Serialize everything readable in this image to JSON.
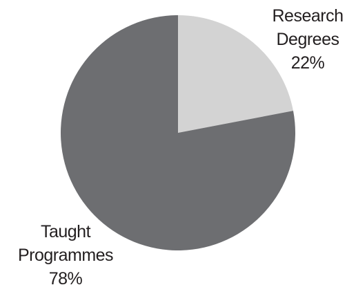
{
  "chart_data": {
    "type": "pie",
    "categories": [
      "Research Degrees",
      "Taught Programmes"
    ],
    "values": [
      22,
      78
    ],
    "value_labels": [
      "22%",
      "78%"
    ],
    "colors": [
      "#d3d3d3",
      "#6d6e71"
    ]
  }
}
